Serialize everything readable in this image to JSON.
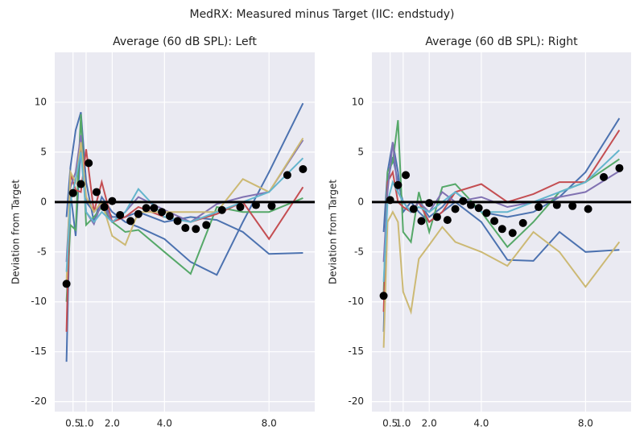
{
  "title": "MedRX: Measured minus Target (IIC: endstudy)",
  "chart_data": [
    {
      "type": "line",
      "title": "Average (60 dB SPL): Left",
      "ylabel": "Deviation from Target",
      "xlim": [
        -0.2,
        9.75
      ],
      "xticks": [
        0.5,
        {
          "value": 1,
          "label": "1.0"
        },
        {
          "value": 2,
          "label": "2.0"
        },
        {
          "value": 4,
          "label": "4.0"
        },
        {
          "value": 8,
          "label": "8.0"
        }
      ],
      "ylim": [
        -21,
        15
      ],
      "yticks": [
        -20,
        -15,
        -10,
        -5,
        0,
        5,
        10
      ],
      "grid": true,
      "hline": 0,
      "x": [
        0.25,
        0.4,
        0.6,
        0.8,
        1.0,
        1.3,
        1.6,
        2.0,
        2.5,
        3.0,
        4.0,
        5.0,
        6.0,
        7.0,
        8.0,
        9.3
      ],
      "series": [
        {
          "color": "#4c72b0",
          "values": [
            -1.5,
            3.5,
            7.2,
            9,
            2,
            -2,
            0.5,
            -1,
            -2,
            -2.5,
            -3.7,
            -6,
            -7.3,
            -2,
            3,
            9.9
          ]
        },
        {
          "color": "#4c72b0",
          "values": [
            -16,
            1,
            -3.4,
            6,
            0,
            -1,
            0,
            -1.5,
            -1.5,
            -1,
            -2,
            -1.5,
            -1.8,
            -3,
            -5.2,
            -5.1
          ]
        },
        {
          "color": "#55a868",
          "values": [
            -10,
            -2.3,
            -2.8,
            8.8,
            -2.3,
            -1.5,
            -0.5,
            -2,
            -3,
            -2.8,
            -5,
            -7.2,
            -0.5,
            -1,
            -1,
            0.4
          ]
        },
        {
          "color": "#c44e52",
          "values": [
            -13,
            2.8,
            1.2,
            1,
            5.3,
            -1,
            2,
            -2,
            -1.5,
            -0.5,
            -1.5,
            -2,
            -1.2,
            0,
            -3.7,
            1.5
          ]
        },
        {
          "color": "#8172b2",
          "values": [
            -6,
            1.5,
            3,
            6.7,
            -1,
            -2.2,
            0,
            -2,
            -1,
            0.5,
            -0.8,
            -2,
            -0.2,
            0.5,
            1,
            6.2
          ]
        },
        {
          "color": "#ccb974",
          "values": [
            -8,
            3,
            2,
            6,
            0.5,
            -1,
            0,
            -3.4,
            -4.3,
            -1,
            -1,
            -1,
            -1,
            2.3,
            1,
            6.4
          ]
        },
        {
          "color": "#64b5cd",
          "values": [
            -7,
            0,
            2.3,
            5,
            -1,
            -2,
            -1,
            -2,
            -1,
            1.3,
            -1.5,
            -2,
            -1,
            0,
            1,
            4.4
          ]
        }
      ],
      "mean": {
        "color": "#000000",
        "x": [
          0.25,
          0.5,
          0.8,
          1.1,
          1.4,
          1.7,
          2,
          2.3,
          2.7,
          3,
          3.3,
          3.6,
          3.9,
          4.2,
          4.5,
          4.8,
          5.2,
          5.6,
          6.2,
          6.9,
          7.5,
          8.1,
          8.7,
          9.3
        ],
        "values": [
          -8.2,
          0.9,
          1.8,
          3.9,
          1.0,
          -0.5,
          0.1,
          -1.3,
          -1.9,
          -1.2,
          -0.6,
          -0.6,
          -1.0,
          -1.4,
          -1.9,
          -2.6,
          -2.7,
          -2.3,
          -0.8,
          -0.5,
          -0.3,
          -0.4,
          2.7,
          3.3
        ]
      }
    },
    {
      "type": "line",
      "title": "Average (60 dB SPL): Right",
      "ylabel": "Deviation from Target",
      "xlim": [
        -0.2,
        9.75
      ],
      "xticks": [
        0.5,
        {
          "value": 1,
          "label": "1.0"
        },
        {
          "value": 2,
          "label": "2.0"
        },
        {
          "value": 4,
          "label": "4.0"
        },
        {
          "value": 8,
          "label": "8.0"
        }
      ],
      "ylim": [
        -21,
        15
      ],
      "yticks": [
        -20,
        -15,
        -10,
        -5,
        0,
        5,
        10
      ],
      "grid": true,
      "hline": 0,
      "x": [
        0.25,
        0.4,
        0.6,
        0.8,
        1.0,
        1.3,
        1.6,
        2.0,
        2.5,
        3.0,
        4.0,
        5.0,
        6.0,
        7.0,
        8.0,
        9.3
      ],
      "series": [
        {
          "color": "#4c72b0",
          "values": [
            -3,
            3,
            6,
            3,
            -1,
            0,
            -1,
            -2,
            -1,
            0,
            -2,
            -5.8,
            -5.9,
            -3,
            -5,
            -4.8
          ]
        },
        {
          "color": "#4c72b0",
          "values": [
            -13,
            2,
            4.5,
            2,
            0,
            -1,
            0,
            -1.5,
            -0.5,
            1,
            -1,
            -1.5,
            -1,
            0.5,
            3,
            8.4
          ]
        },
        {
          "color": "#55a868",
          "values": [
            -9,
            3,
            4,
            8.2,
            -3,
            -4,
            1,
            -3,
            1.5,
            1.8,
            -1,
            -4.5,
            -2,
            1,
            2,
            4.3
          ]
        },
        {
          "color": "#c44e52",
          "values": [
            -11,
            2,
            3,
            0,
            -0.5,
            -1,
            0,
            -2,
            -1,
            1,
            1.8,
            0,
            0.8,
            2,
            2,
            7.2
          ]
        },
        {
          "color": "#8172b2",
          "values": [
            -6,
            1,
            6,
            1,
            0,
            -1,
            0,
            -1,
            1,
            0,
            0.5,
            -0.5,
            0,
            0.5,
            1,
            3.1
          ]
        },
        {
          "color": "#ccb974",
          "values": [
            -14.6,
            -2,
            -1,
            -2,
            -9,
            -11,
            -5.7,
            -4.3,
            -2.5,
            -4,
            -5,
            -6.4,
            -3,
            -5,
            -8.5,
            -4
          ]
        },
        {
          "color": "#64b5cd",
          "values": [
            -8,
            0,
            2,
            1,
            0,
            -1,
            -0.5,
            -1,
            0,
            1,
            -1,
            -1,
            0,
            1,
            2,
            5.2
          ]
        }
      ],
      "mean": {
        "color": "#000000",
        "x": [
          0.25,
          0.5,
          0.8,
          1.1,
          1.4,
          1.7,
          2,
          2.3,
          2.7,
          3,
          3.3,
          3.6,
          3.9,
          4.2,
          4.5,
          4.8,
          5.2,
          5.6,
          6.2,
          6.9,
          7.5,
          8.1,
          8.7,
          9.3
        ],
        "values": [
          -9.4,
          0.2,
          1.7,
          2.7,
          -0.7,
          -1.9,
          -0.1,
          -1.5,
          -1.8,
          -0.7,
          0.1,
          -0.3,
          -0.6,
          -1.1,
          -1.9,
          -2.7,
          -3.1,
          -2.1,
          -0.5,
          -0.3,
          -0.4,
          -0.7,
          2.5,
          3.4
        ]
      }
    }
  ]
}
